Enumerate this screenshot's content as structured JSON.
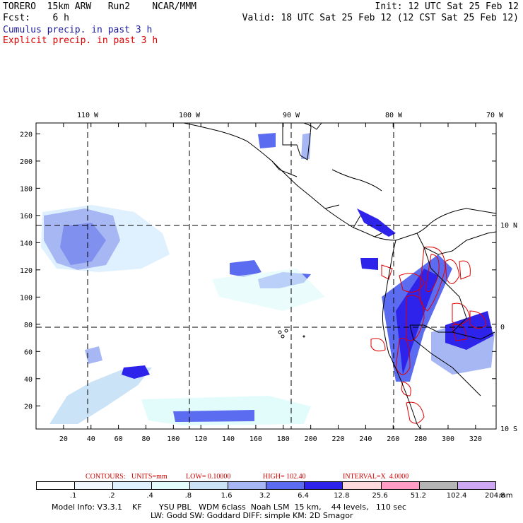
{
  "header": {
    "model_name": "TORERO",
    "resolution": "15km ARW",
    "run": "Run2",
    "org": "NCAR/MMM",
    "init": "Init: 12 UTC Sat 25 Feb 12",
    "fcst_label": "Fcst:",
    "fcst_value": "6 h",
    "valid": "Valid: 18 UTC Sat 25 Feb 12 (12 CST Sat 25 Feb 12)",
    "cumulus": "Cumulus precip. in past 3 h",
    "explicit": "Explicit precip. in past 3 h",
    "cumulus_color": "#1a1a9e",
    "explicit_color": "#e00000"
  },
  "chart_data": {
    "type": "map",
    "x_ticks": [
      "20",
      "40",
      "60",
      "80",
      "100",
      "120",
      "140",
      "160",
      "180",
      "200",
      "220",
      "240",
      "260",
      "280",
      "300",
      "320"
    ],
    "y_ticks": [
      "20",
      "40",
      "60",
      "80",
      "100",
      "120",
      "140",
      "160",
      "180",
      "200",
      "220"
    ],
    "lon_labels": [
      "110 W",
      "100 W",
      "90 W",
      "80 W",
      "70 W"
    ],
    "lat_labels": [
      "10 N",
      "0",
      "10 S"
    ]
  },
  "colorbar": {
    "values": [
      ".1",
      ".2",
      ".4",
      ".8",
      "1.6",
      "3.2",
      "6.4",
      "12.8",
      "25.6",
      "51.2",
      "102.4",
      "204.8"
    ],
    "unit": "mm",
    "colors": [
      "#ffffff",
      "#f0f7ff",
      "#dff0ff",
      "#e2fbfb",
      "#cbe3f7",
      "#a7b7f3",
      "#5c6cf1",
      "#2e23eb",
      "#ffd9de",
      "#ff9dc5",
      "#b5b5b5",
      "#cfa8f3"
    ]
  },
  "contours": {
    "label": "CONTOURS:",
    "units": "UNITS=mm",
    "low": "LOW= 0.10000",
    "high": "HIGH= 102.40",
    "interval": "INTERVAL=X  4.0000"
  },
  "model_info": {
    "line1": "Model Info: V3.3.1    KF       YSU PBL   WDM 6class  Noah LSM  15 km,    44 levels,   110 sec",
    "line2": "LW: Godd SW: Goddard DIFF: simple KM: 2D Smagor"
  }
}
